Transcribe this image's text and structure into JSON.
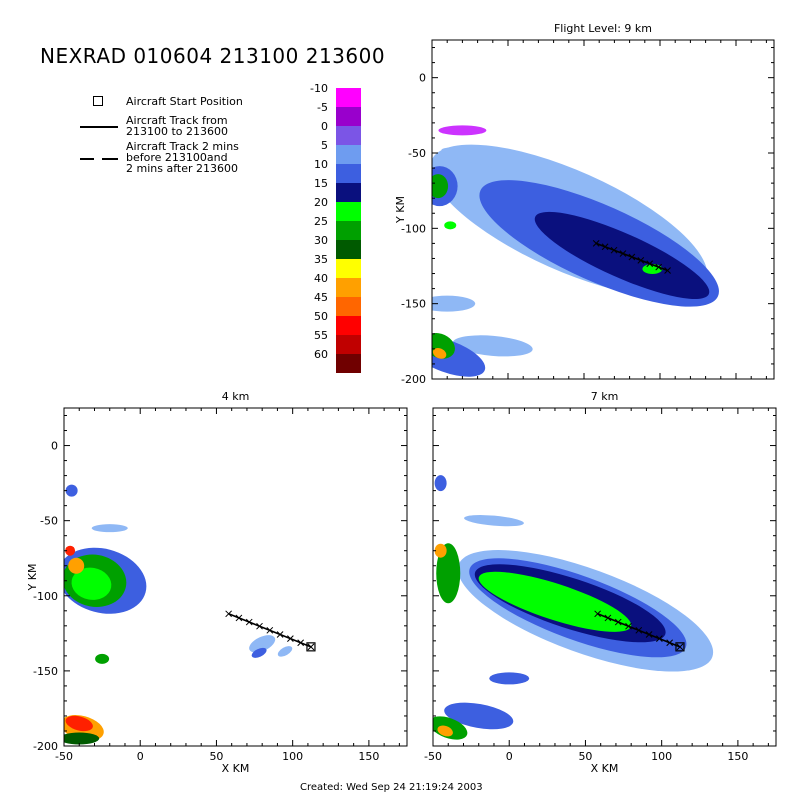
{
  "title": "NEXRAD 010604 213100 213600",
  "legend": {
    "start_label": "Aircraft Start Position",
    "track_label_1": "Aircraft Track from",
    "track_label_2": "213100 to 213600",
    "track2_label_1": "Aircraft Track 2 mins",
    "track2_label_2": "before 213100and",
    "track2_label_3": "2 mins after 213600"
  },
  "colorbar": {
    "labels": [
      "-10",
      "-5",
      "0",
      "5",
      "10",
      "15",
      "20",
      "25",
      "30",
      "35",
      "40",
      "45",
      "50",
      "55",
      "60"
    ],
    "colors": [
      "#ff00ff",
      "#9900cc",
      "#7b55e6",
      "#6e9cf0",
      "#3d5fe0",
      "#0a107e",
      "#00ff00",
      "#00a000",
      "#005a00",
      "#ffff00",
      "#ffa000",
      "#ff6600",
      "#ff0000",
      "#c00000",
      "#700000"
    ]
  },
  "footer": "Created: Wed Sep 24 21:19:24 2003",
  "chart_data": [
    {
      "type": "heatmap",
      "title": "Flight Level: 9 km",
      "xlabel": "",
      "ylabel": "Y KM",
      "xlim": [
        -50,
        175
      ],
      "ylim": [
        -200,
        25
      ],
      "xticks": [],
      "yticks": [
        0,
        -50,
        -100,
        -150,
        -200
      ],
      "track": {
        "x": [
          58,
          105
        ],
        "y": [
          -110,
          -128
        ]
      },
      "green_blobs": [
        [
          95,
          -125,
          8
        ],
        [
          100,
          -132,
          4
        ],
        [
          -40,
          -70,
          4
        ],
        [
          -38,
          -100,
          3
        ],
        [
          -45,
          -175,
          4
        ]
      ]
    },
    {
      "type": "heatmap",
      "title": "4 km",
      "xlabel": "X KM",
      "ylabel": "Y KM",
      "xlim": [
        -50,
        175
      ],
      "ylim": [
        -200,
        25
      ],
      "xticks": [
        -50,
        0,
        50,
        100,
        150
      ],
      "yticks": [
        0,
        -50,
        -100,
        -150,
        -200
      ],
      "track": {
        "x": [
          58,
          112
        ],
        "y": [
          -112,
          -134
        ]
      },
      "start_position": {
        "x": 112,
        "y": -134
      }
    },
    {
      "type": "heatmap",
      "title": "7 km",
      "xlabel": "X KM",
      "ylabel": "",
      "xlim": [
        -50,
        175
      ],
      "ylim": [
        -200,
        25
      ],
      "xticks": [
        -50,
        0,
        50,
        100,
        150
      ],
      "yticks": [],
      "track": {
        "x": [
          58,
          112
        ],
        "y": [
          -112,
          -134
        ]
      },
      "start_position": {
        "x": 112,
        "y": -134
      }
    }
  ]
}
